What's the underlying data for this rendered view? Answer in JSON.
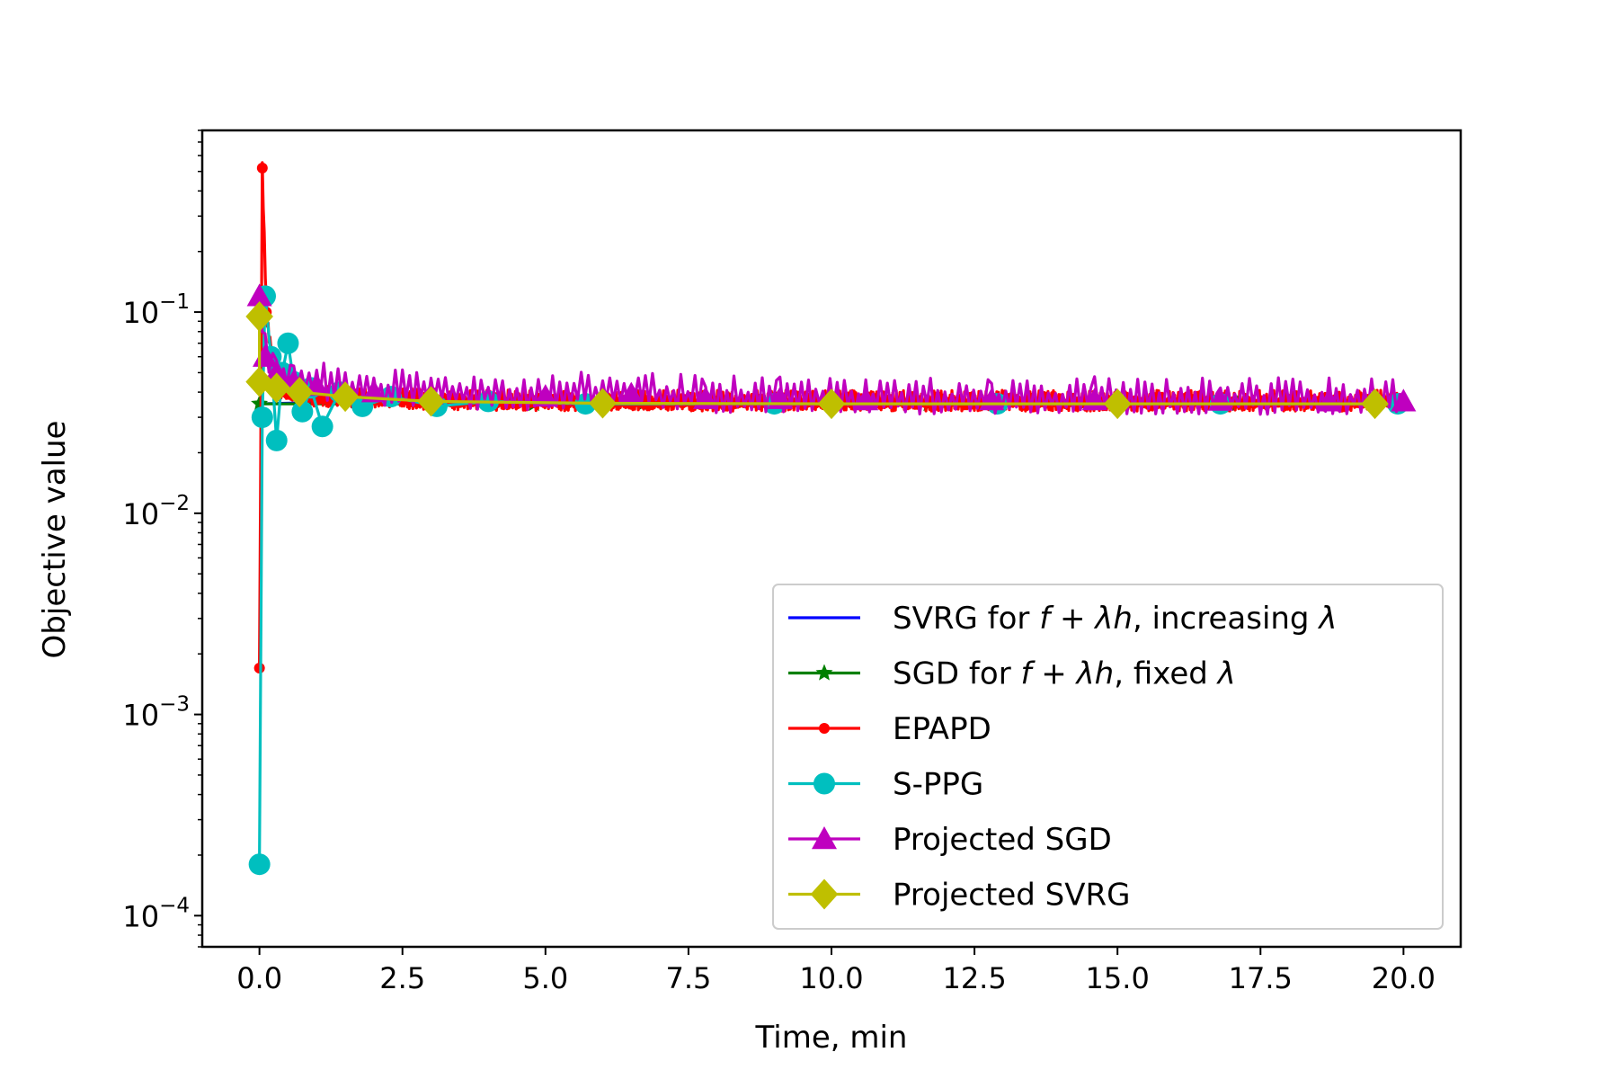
{
  "chart_data": {
    "type": "line",
    "title": "",
    "xlabel": "Time, min",
    "ylabel": "Objective value",
    "xscale": "linear",
    "yscale": "log",
    "xlim": [
      -1.0,
      21.0
    ],
    "ylim": [
      7e-05,
      0.8
    ],
    "grid": false,
    "legend_location": "lower-right",
    "x_ticks": [
      {
        "value": 0.0,
        "label": "0.0"
      },
      {
        "value": 2.5,
        "label": "2.5"
      },
      {
        "value": 5.0,
        "label": "5.0"
      },
      {
        "value": 7.5,
        "label": "7.5"
      },
      {
        "value": 10.0,
        "label": "10.0"
      },
      {
        "value": 12.5,
        "label": "12.5"
      },
      {
        "value": 15.0,
        "label": "15.0"
      },
      {
        "value": 17.5,
        "label": "17.5"
      },
      {
        "value": 20.0,
        "label": "20.0"
      }
    ],
    "y_ticks": [
      {
        "value": 0.0001,
        "mantissa": "10",
        "exponent": "−4"
      },
      {
        "value": 0.001,
        "mantissa": "10",
        "exponent": "−3"
      },
      {
        "value": 0.01,
        "mantissa": "10",
        "exponent": "−2"
      },
      {
        "value": 0.1,
        "mantissa": "10",
        "exponent": "−1"
      }
    ],
    "series": [
      {
        "name": "SVRG for f + λh, increasing λ",
        "legend": {
          "prefix": "SVRG for ",
          "math": "f + λh",
          "suffix": ", increasing ",
          "math2": "λ"
        },
        "color": "#0000ff",
        "marker": "none",
        "noise": 0,
        "stride": 1,
        "points": [
          [
            0.0,
            0.035
          ],
          [
            1.0,
            0.0355
          ],
          [
            5.0,
            0.0352
          ],
          [
            10.0,
            0.0352
          ],
          [
            15.0,
            0.0352
          ],
          [
            20.0,
            0.0352
          ]
        ]
      },
      {
        "name": "SGD for f + λh, fixed λ",
        "legend": {
          "prefix": "SGD for ",
          "math": "f + λh",
          "suffix": ", fixed ",
          "math2": "λ"
        },
        "color": "#008000",
        "marker": "star",
        "noise": 0,
        "stride": 1,
        "points": [
          [
            0.0,
            0.035
          ],
          [
            4.8,
            0.035
          ],
          [
            6.7,
            0.035
          ],
          [
            11.7,
            0.035
          ],
          [
            14.4,
            0.035
          ],
          [
            17.1,
            0.035
          ],
          [
            19.9,
            0.035
          ]
        ]
      },
      {
        "name": "EPAPD",
        "legend": {
          "prefix": "EPAPD"
        },
        "color": "#ff0000",
        "marker": "dot",
        "noise": 0.05,
        "stride": 1,
        "points": [
          [
            0.0,
            0.0017
          ],
          [
            0.05,
            0.52
          ],
          [
            0.12,
            0.1
          ],
          [
            0.2,
            0.06
          ],
          [
            0.3,
            0.042
          ],
          [
            0.5,
            0.039
          ],
          [
            1.0,
            0.037
          ],
          [
            3.5,
            0.0355
          ],
          [
            7.0,
            0.0352
          ],
          [
            8.7,
            0.0352
          ],
          [
            10.6,
            0.0352
          ],
          [
            13.0,
            0.0352
          ],
          [
            15.5,
            0.0352
          ],
          [
            18.0,
            0.0352
          ],
          [
            19.9,
            0.0352
          ]
        ]
      },
      {
        "name": "S-PPG",
        "legend": {
          "prefix": "S-PPG"
        },
        "color": "#00bfbf",
        "marker": "circle",
        "noise": 0,
        "stride": 1,
        "points": [
          [
            0.0,
            0.00018
          ],
          [
            0.05,
            0.03
          ],
          [
            0.1,
            0.12
          ],
          [
            0.2,
            0.06
          ],
          [
            0.3,
            0.023
          ],
          [
            0.4,
            0.05
          ],
          [
            0.5,
            0.07
          ],
          [
            0.6,
            0.045
          ],
          [
            0.75,
            0.032
          ],
          [
            0.9,
            0.042
          ],
          [
            1.1,
            0.027
          ],
          [
            1.4,
            0.04
          ],
          [
            1.8,
            0.034
          ],
          [
            2.3,
            0.038
          ],
          [
            3.1,
            0.034
          ],
          [
            4.0,
            0.036
          ],
          [
            5.7,
            0.035
          ],
          [
            9.0,
            0.035
          ],
          [
            12.9,
            0.035
          ],
          [
            16.8,
            0.035
          ],
          [
            19.9,
            0.035
          ]
        ]
      },
      {
        "name": "Projected SGD",
        "legend": {
          "prefix": "Projected SGD"
        },
        "color": "#bf00bf",
        "marker": "triangle",
        "noise": 0.09,
        "stride": 4,
        "points": [
          [
            0.0,
            0.12
          ],
          [
            0.1,
            0.06
          ],
          [
            0.3,
            0.05
          ],
          [
            0.6,
            0.045
          ],
          [
            1.0,
            0.043
          ],
          [
            2.0,
            0.04
          ],
          [
            3.0,
            0.039
          ],
          [
            5.0,
            0.038
          ],
          [
            6.5,
            0.039
          ],
          [
            7.8,
            0.037
          ],
          [
            9.1,
            0.037
          ],
          [
            10.6,
            0.0365
          ],
          [
            12.8,
            0.0365
          ],
          [
            14.6,
            0.0365
          ],
          [
            16.8,
            0.0363
          ],
          [
            18.7,
            0.036
          ],
          [
            20.0,
            0.036
          ]
        ]
      },
      {
        "name": "Projected SVRG",
        "legend": {
          "prefix": "Projected SVRG"
        },
        "color": "#bfbf00",
        "marker": "diamond",
        "noise": 0,
        "stride": 1,
        "points": [
          [
            0.0,
            0.095
          ],
          [
            0.0,
            0.045
          ],
          [
            0.3,
            0.042
          ],
          [
            0.7,
            0.04
          ],
          [
            1.5,
            0.038
          ],
          [
            3.0,
            0.036
          ],
          [
            6.0,
            0.0352
          ],
          [
            10.0,
            0.035
          ],
          [
            15.0,
            0.035
          ],
          [
            19.5,
            0.035
          ]
        ]
      }
    ]
  }
}
